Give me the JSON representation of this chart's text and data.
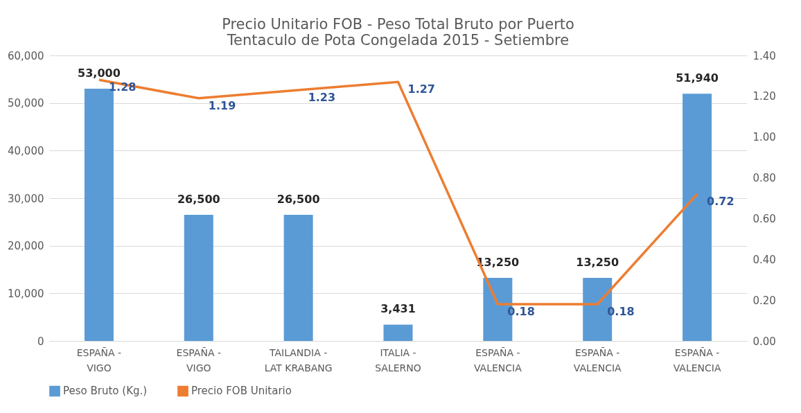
{
  "chart_data": {
    "type": "bar",
    "title": [
      "Precio Unitario FOB - Peso Total Bruto por Puerto",
      "Tentaculo de Pota Congelada 2015 - Setiembre"
    ],
    "categories": [
      "ESPAÑA - VIGO",
      "ESPAÑA - VIGO",
      "TAILANDIA - LAT KRABANG",
      "ITALIA - SALERNO",
      "ESPAÑA - VALENCIA",
      "ESPAÑA - VALENCIA",
      "ESPAÑA - VALENCIA"
    ],
    "series": [
      {
        "name": "Peso Bruto (Kg.)",
        "color": "#5b9bd5",
        "values": [
          53000,
          26500,
          26500,
          3431,
          13250,
          13250,
          51940
        ],
        "value_labels": [
          "53,000",
          "26,500",
          "26,500",
          "3,431",
          "13,250",
          "13,250",
          "51,940"
        ]
      },
      {
        "name": "Precio FOB Unitario",
        "type": "line",
        "axis": "y2",
        "color": "#ed7d31",
        "values": [
          1.28,
          1.19,
          1.23,
          1.27,
          0.18,
          0.18,
          0.72
        ],
        "value_labels": [
          "1.28",
          "1.19",
          "1.23",
          "1.27",
          "0.18",
          "0.18",
          "0.72"
        ]
      }
    ],
    "ylim": [
      0,
      60000
    ],
    "yticks": [
      {
        "value": 0,
        "label": "0"
      },
      {
        "value": 10000,
        "label": "10,000"
      },
      {
        "value": 20000,
        "label": "20,000"
      },
      {
        "value": 30000,
        "label": "30,000"
      },
      {
        "value": 40000,
        "label": "40,000"
      },
      {
        "value": 50000,
        "label": "50,000"
      },
      {
        "value": 60000,
        "label": "60,000"
      }
    ],
    "y2lim": [
      0,
      1.4
    ],
    "y2ticks": [
      {
        "value": 0,
        "label": "0.00"
      },
      {
        "value": 0.2,
        "label": "0.20"
      },
      {
        "value": 0.4,
        "label": "0.40"
      },
      {
        "value": 0.6,
        "label": "0.60"
      },
      {
        "value": 0.8,
        "label": "0.80"
      },
      {
        "value": 1.0,
        "label": "1.00"
      },
      {
        "value": 1.2,
        "label": "1.20"
      },
      {
        "value": 1.4,
        "label": "1.40"
      }
    ],
    "grid": "y",
    "legend": "bottom",
    "marker": "none",
    "line_style": "solid"
  }
}
